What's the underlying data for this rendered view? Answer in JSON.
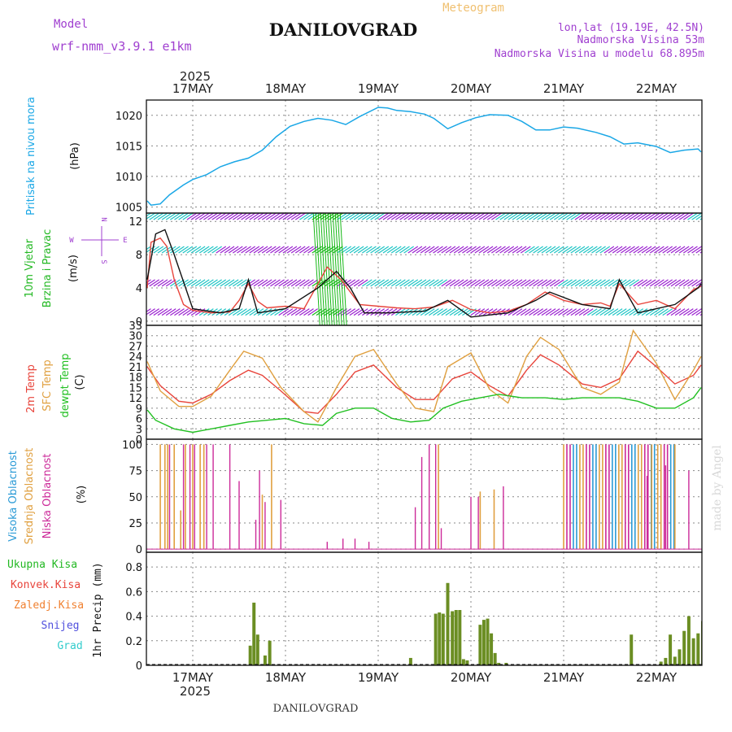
{
  "header": {
    "model_label": "Model",
    "model_name": "wrf-nmm_v3.9.1 e1km",
    "title": "DANILOVGRAD",
    "subtitle": "Meteogram",
    "coords": "lon,lat (19.19E, 42.5N)",
    "elevation": "Nadmorska Visina 53m",
    "model_elevation": "Nadmorska Visina u modelu 68.895m",
    "footer_title": "DANILOVGRAD",
    "watermark": "made by Angel"
  },
  "colors": {
    "pressure": "#1aa7e6",
    "t2m": "#e8453c",
    "sfc": "#e0a040",
    "dewpt": "#22c022",
    "high_cloud": "#2a9ad6",
    "mid_cloud": "#e0a040",
    "low_cloud": "#cc2a99",
    "precip_total": "#22b822",
    "precip_conv": "#e8453c",
    "precip_frozen": "#f08030",
    "snow": "#5050dd",
    "hail": "#33cccc",
    "wind_speed": "#e8453c",
    "wind_barb_dense": "#16b816",
    "wind_barb_mid": "#1ec4c4",
    "wind_barb_arrow": "#9a20d0"
  },
  "time_axis": {
    "year": "2025",
    "days": [
      "17MAY",
      "18MAY",
      "19MAY",
      "20MAY",
      "21MAY",
      "22MAY"
    ]
  },
  "chart_data": [
    {
      "id": "pressure",
      "type": "line",
      "ylabel_1": "Pritisak na nivou mora",
      "ylabel_2": "(hPa)",
      "yticks": [
        1005,
        1010,
        1015,
        1020
      ],
      "ylim": [
        1004,
        1022.5
      ],
      "x_unit": "days since 17MAY 00",
      "series": [
        {
          "key": "pressure",
          "x": [
            -0.55,
            -0.45,
            -0.35,
            -0.25,
            -0.1,
            0,
            0.15,
            0.3,
            0.45,
            0.6,
            0.75,
            0.9,
            1.05,
            1.2,
            1.35,
            1.5,
            1.65,
            1.8,
            2,
            2.1,
            2.2,
            2.35,
            2.5,
            2.6,
            2.75,
            2.9,
            3.05,
            3.2,
            3.4,
            3.55,
            3.7,
            3.85,
            4,
            4.15,
            4.35,
            4.5,
            4.65,
            4.8,
            5,
            5.15,
            5.3,
            5.45,
            5.65
          ],
          "y": [
            1006,
            1005.3,
            1005.5,
            1007,
            1008.6,
            1009.5,
            1010.3,
            1011.6,
            1012.4,
            1013,
            1014.3,
            1016.5,
            1018.2,
            1019,
            1019.5,
            1019.2,
            1018.5,
            1019.8,
            1021.3,
            1021.2,
            1020.8,
            1020.6,
            1020.2,
            1019.5,
            1017.8,
            1018.8,
            1019.6,
            1020.1,
            1020,
            1019,
            1017.6,
            1017.6,
            1018.1,
            1017.9,
            1017.2,
            1016.5,
            1015.3,
            1015.5,
            1014.9,
            1013.9,
            1014.3,
            1014.5,
            1014
          ]
        }
      ]
    },
    {
      "id": "wind",
      "type": "line",
      "ylabel_1": "10m Vjetar",
      "ylabel_2": "Brzina i Pravac",
      "ylabel_3": "(m/s)",
      "compass_n": "N",
      "compass_s": "S",
      "compass_w": "W",
      "compass_e": "E",
      "yticks": [
        0,
        4,
        8,
        12
      ],
      "ylim": [
        -0.5,
        13
      ],
      "series": [
        {
          "key": "wind_speed",
          "x": [
            -0.55,
            -0.45,
            -0.35,
            -0.28,
            -0.2,
            -0.1,
            0,
            0.2,
            0.4,
            0.5,
            0.6,
            0.7,
            0.8,
            1,
            1.2,
            1.3,
            1.45,
            1.6,
            1.8,
            2,
            2.2,
            2.4,
            2.6,
            2.8,
            3,
            3.2,
            3.4,
            3.6,
            3.8,
            4,
            4.2,
            4.4,
            4.5,
            4.6,
            4.8,
            5,
            5.2,
            5.4,
            5.6
          ],
          "y": [
            4,
            9.5,
            10,
            9,
            5,
            2,
            1.3,
            1,
            1.1,
            2.5,
            4.5,
            2.4,
            1.6,
            1.8,
            1.5,
            3.5,
            6.5,
            5,
            2,
            1.8,
            1.6,
            1.5,
            1.7,
            2.5,
            1.4,
            1,
            1.2,
            2,
            3.5,
            2.5,
            2,
            2.2,
            1.8,
            4.5,
            2,
            2.5,
            1.5,
            3.8,
            4.2
          ]
        },
        {
          "key": "wind_gust",
          "x": [
            -0.55,
            -0.4,
            -0.3,
            -0.2,
            0,
            0.3,
            0.5,
            0.6,
            0.7,
            1,
            1.35,
            1.55,
            1.7,
            1.85,
            2.1,
            2.5,
            2.75,
            3,
            3.4,
            3.7,
            3.85,
            4.2,
            4.5,
            4.6,
            4.8,
            5.2,
            5.45,
            5.6
          ],
          "y": [
            5,
            10.5,
            11,
            8,
            1.5,
            1,
            1.5,
            5,
            1,
            1.5,
            4,
            6,
            4,
            1,
            1,
            1.2,
            2.5,
            0.5,
            1,
            2.5,
            3.5,
            2,
            1.5,
            5,
            1,
            2,
            4,
            4.5
          ]
        }
      ]
    },
    {
      "id": "temperature",
      "type": "line",
      "ylabel_1": "2m Temp",
      "ylabel_2": "SFC Temp",
      "ylabel_3": "dewpt Temp",
      "ylabel_4": "(C)",
      "yticks": [
        0,
        3,
        6,
        9,
        12,
        15,
        18,
        21,
        24,
        27,
        30,
        33
      ],
      "ylim": [
        0,
        33
      ],
      "series": [
        {
          "key": "t2m",
          "x": [
            -0.55,
            -0.35,
            -0.15,
            0,
            0.2,
            0.4,
            0.6,
            0.75,
            0.95,
            1.2,
            1.35,
            1.55,
            1.75,
            1.95,
            2.2,
            2.4,
            2.6,
            2.8,
            3,
            3.2,
            3.4,
            3.6,
            3.75,
            3.95,
            4.2,
            4.4,
            4.6,
            4.8,
            5,
            5.2,
            5.4,
            5.6
          ],
          "y": [
            21,
            15.5,
            11,
            10.5,
            13,
            17,
            20,
            18.5,
            14,
            8,
            7.5,
            13,
            19.5,
            21.5,
            15,
            11.5,
            11.5,
            17.5,
            19.5,
            15.5,
            12.5,
            20,
            24.5,
            21.5,
            16,
            15,
            17.5,
            25.5,
            21,
            16,
            18.5,
            21.5
          ]
        },
        {
          "key": "sfc",
          "x": [
            -0.55,
            -0.35,
            -0.15,
            0,
            0.2,
            0.4,
            0.55,
            0.75,
            0.95,
            1.2,
            1.35,
            1.55,
            1.75,
            1.95,
            2.2,
            2.4,
            2.6,
            2.75,
            3,
            3.2,
            3.4,
            3.6,
            3.75,
            3.95,
            4.2,
            4.4,
            4.6,
            4.75,
            5,
            5.2,
            5.4,
            5.6
          ],
          "y": [
            22.5,
            14,
            9.5,
            9.5,
            12.5,
            20,
            25.5,
            23.5,
            15,
            8,
            5,
            15,
            24,
            26,
            16,
            9,
            8,
            21,
            25,
            14.5,
            10.5,
            24,
            29.5,
            26,
            15,
            13,
            16.5,
            31.5,
            22,
            11.5,
            20,
            24
          ]
        },
        {
          "key": "dewpt",
          "x": [
            -0.55,
            -0.4,
            -0.2,
            0,
            0.2,
            0.4,
            0.6,
            0.8,
            1,
            1.2,
            1.4,
            1.55,
            1.75,
            1.95,
            2.15,
            2.35,
            2.55,
            2.7,
            2.9,
            3.1,
            3.3,
            3.55,
            3.8,
            4,
            4.2,
            4.4,
            4.6,
            4.8,
            5,
            5.2,
            5.4,
            5.6
          ],
          "y": [
            8.5,
            5.5,
            3,
            2,
            3,
            4,
            5,
            5.5,
            6,
            4.5,
            4,
            7.5,
            9,
            9,
            6,
            5,
            5.5,
            9,
            11,
            12,
            13,
            12,
            12,
            11.5,
            12,
            12,
            12,
            11,
            9,
            9,
            12,
            15
          ]
        }
      ]
    },
    {
      "id": "clouds",
      "type": "bar",
      "ylabel_1": "Visoka Oblacnost",
      "ylabel_2": "Srednja Oblacnost",
      "ylabel_3": "Niska Oblacnost",
      "ylabel_4": "(%)",
      "yticks": [
        0,
        25,
        50,
        75,
        100
      ],
      "ylim": [
        -3,
        105
      ],
      "series": [
        {
          "key": "mid_cloud",
          "x": [
            -0.35,
            -0.3,
            -0.27,
            -0.2,
            -0.13,
            -0.08,
            0,
            0.08,
            0.12,
            0.75,
            0.85,
            2.65,
            3.1,
            3.25,
            4.95,
            5.05,
            5.2
          ],
          "y": [
            100,
            100,
            100,
            100,
            37,
            100,
            100,
            100,
            100,
            52,
            100,
            100,
            55,
            57,
            100,
            100,
            100
          ]
        },
        {
          "key": "low_cloud",
          "x": [
            -0.25,
            -0.1,
            -0.03,
            0.02,
            0.15,
            0.22,
            0.4,
            0.5,
            0.68,
            0.72,
            0.78,
            0.95,
            1.45,
            1.62,
            1.75,
            1.9,
            2.4,
            2.47,
            2.55,
            2.62,
            2.68,
            3,
            3.08,
            3.35,
            4.9,
            5.1,
            5.35
          ],
          "y": [
            100,
            100,
            100,
            100,
            100,
            100,
            100,
            65,
            28,
            75,
            45,
            47,
            7,
            10,
            10,
            7,
            40,
            88,
            100,
            100,
            20,
            50,
            50,
            60,
            70,
            80,
            75
          ]
        },
        {
          "key": "high_cloud_block",
          "x_start": 4.0,
          "x_end": 5.2,
          "y": 100
        }
      ]
    },
    {
      "id": "precip",
      "type": "bar",
      "ylabel_1": "1hr Precip (mm)",
      "legend": [
        "Ukupna Kisa",
        "Konvek.Kisa",
        "Zaledj.Kisa",
        "Snijeg",
        "Grad"
      ],
      "yticks": [
        0,
        0.2,
        0.4,
        0.6,
        0.8
      ],
      "ylim": [
        0,
        0.92
      ],
      "series": [
        {
          "key": "precip_total",
          "x": [
            0.62,
            0.66,
            0.7,
            0.78,
            0.83,
            2.35,
            2.62,
            2.66,
            2.7,
            2.75,
            2.8,
            2.84,
            2.88,
            2.92,
            2.96,
            3.1,
            3.14,
            3.18,
            3.22,
            3.26,
            3.3,
            3.38,
            4.73,
            5.05,
            5.1,
            5.15,
            5.2,
            5.25,
            5.3,
            5.35,
            5.4,
            5.45,
            5.5
          ],
          "y": [
            0.16,
            0.51,
            0.25,
            0.08,
            0.2,
            0.06,
            0.42,
            0.43,
            0.42,
            0.67,
            0.44,
            0.45,
            0.45,
            0.05,
            0.04,
            0.33,
            0.37,
            0.38,
            0.26,
            0.1,
            0.02,
            0.02,
            0.25,
            0.03,
            0.06,
            0.25,
            0.07,
            0.13,
            0.28,
            0.4,
            0.22,
            0.26,
            0.36
          ]
        }
      ]
    }
  ]
}
